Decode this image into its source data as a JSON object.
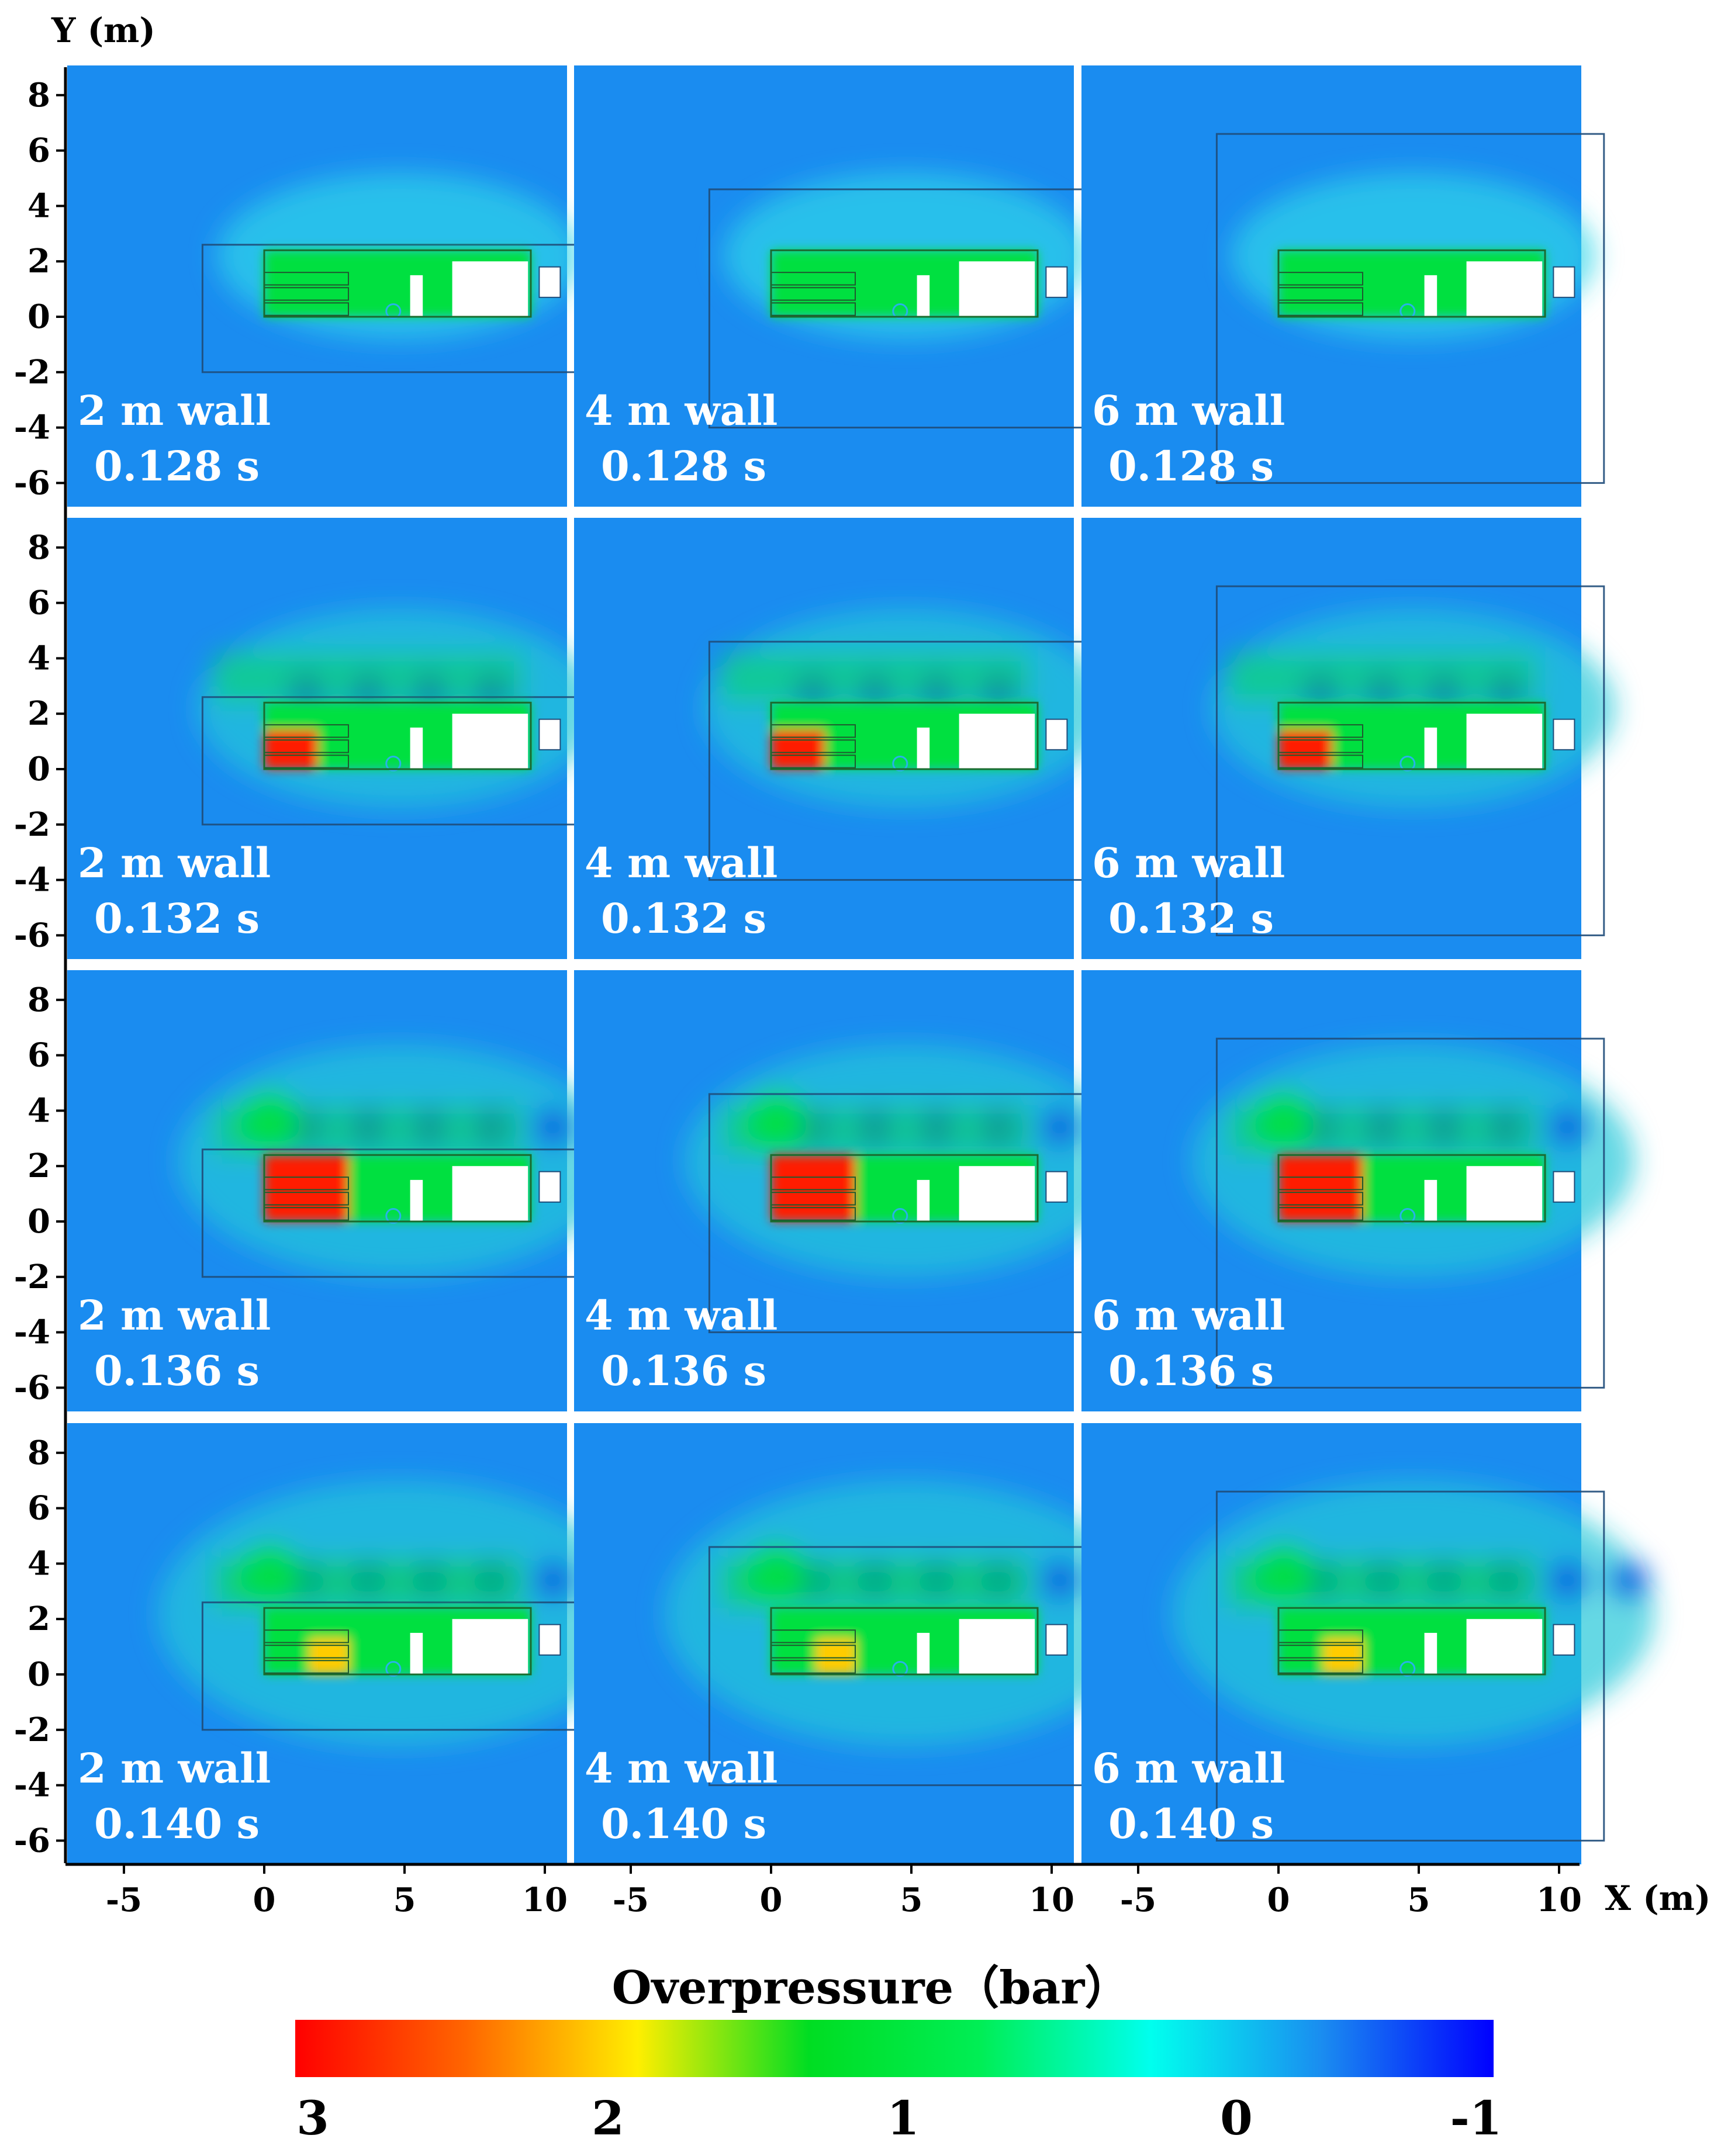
{
  "colors": {
    "background_field": "#1a8cf0",
    "low_pressure": "#0d55e0",
    "mid_pressure": "#00e040",
    "high_pressure": "#ff1a00",
    "gauge": "#29b2e8"
  },
  "chart_data": {
    "type": "heatmap",
    "title": "",
    "xlabel": "X (m)",
    "ylabel": "Y (m)",
    "x_ticks": [
      "-5",
      "0",
      "5",
      "10"
    ],
    "y_ticks": [
      "8",
      "6",
      "4",
      "2",
      "0",
      "-2",
      "-4",
      "-6"
    ],
    "xlim": [
      -7,
      11
    ],
    "ylim": [
      -6.8,
      8.6
    ],
    "grid": false,
    "columns": [
      "2 m wall",
      "4 m wall",
      "6 m wall"
    ],
    "rows": [
      "0.128 s",
      "0.132 s",
      "0.136 s",
      "0.140 s"
    ],
    "wall_heights_m": [
      2,
      4,
      6
    ],
    "times_s": [
      0.128,
      0.132,
      0.136,
      0.14
    ],
    "panels": [
      {
        "wall": "2 m wall",
        "time": "0.128 s",
        "max_overpressure_bar": 1.0
      },
      {
        "wall": "4 m wall",
        "time": "0.128 s",
        "max_overpressure_bar": 1.0
      },
      {
        "wall": "6 m wall",
        "time": "0.128 s",
        "max_overpressure_bar": 1.0
      },
      {
        "wall": "2 m wall",
        "time": "0.132 s",
        "max_overpressure_bar": 3.0
      },
      {
        "wall": "4 m wall",
        "time": "0.132 s",
        "max_overpressure_bar": 3.0
      },
      {
        "wall": "6 m wall",
        "time": "0.132 s",
        "max_overpressure_bar": 3.0
      },
      {
        "wall": "2 m wall",
        "time": "0.136 s",
        "max_overpressure_bar": 3.0
      },
      {
        "wall": "4 m wall",
        "time": "0.136 s",
        "max_overpressure_bar": 3.0
      },
      {
        "wall": "6 m wall",
        "time": "0.136 s",
        "max_overpressure_bar": 3.0
      },
      {
        "wall": "2 m wall",
        "time": "0.140 s",
        "max_overpressure_bar": 2.3
      },
      {
        "wall": "4 m wall",
        "time": "0.140 s",
        "max_overpressure_bar": 2.0
      },
      {
        "wall": "6 m wall",
        "time": "0.140 s",
        "max_overpressure_bar": 2.0
      }
    ],
    "colorbar": {
      "title": "Overpressure（bar）",
      "range": [
        3,
        -1
      ],
      "tick_labels": [
        "3",
        "2",
        "1",
        "0",
        "-1"
      ],
      "tick_values": [
        3,
        2,
        1,
        0,
        -1
      ],
      "colors": [
        "#ff0000",
        "#ff6600",
        "#ffee00",
        "#00dd22",
        "#00ee55",
        "#00ffee",
        "#1a8cf0",
        "#0000ff"
      ]
    }
  }
}
